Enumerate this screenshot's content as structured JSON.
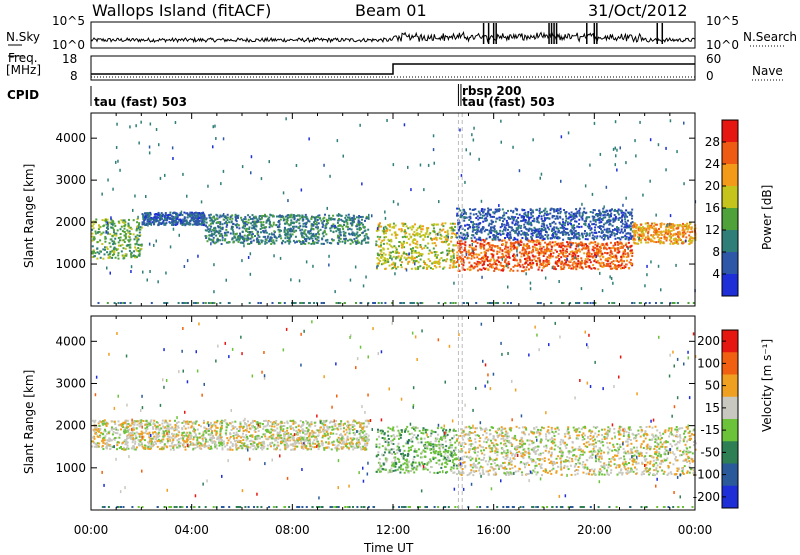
{
  "header": {
    "station": "Wallops Island (fitACF)",
    "beam": "Beam 01",
    "date": "31/Oct/2012"
  },
  "summary_panels": {
    "nsky_label": "N.Sky",
    "nsearch_label": "N.Search",
    "nsky_ticks": [
      "10^5",
      "10^0"
    ],
    "nsearch_ticks": [
      "10^5",
      "10^0"
    ],
    "freq_label_1": "Freq.",
    "freq_label_2": "[MHz]",
    "freq_ticks": [
      "18",
      "8"
    ],
    "nave_label": "Nave",
    "nave_ticks": [
      "60",
      "0"
    ],
    "cpid_label": "CPID",
    "cpid_entries": [
      {
        "text": "tau (fast) 503",
        "hour": 0.0
      },
      {
        "text": "rbsp 200",
        "hour": 14.6
      },
      {
        "text": "tau (fast) 503",
        "hour": 14.75
      }
    ]
  },
  "chart_data": [
    {
      "type": "heatmap",
      "name": "power",
      "ylabel": "Slant Range [km]",
      "xlabel": "Time UT",
      "x_range_hours": [
        0,
        24
      ],
      "ylim": [
        0,
        4600
      ],
      "yticks": [
        1000,
        2000,
        3000,
        4000
      ],
      "xtick_labels": [
        "00:00",
        "04:00",
        "08:00",
        "12:00",
        "16:00",
        "20:00",
        "00:00"
      ],
      "colorbar_label": "Power [dB]",
      "colorbar_ticks": [
        "4",
        "8",
        "12",
        "16",
        "20",
        "24",
        "28"
      ],
      "colorbar_colors": [
        "#1f2fd8",
        "#2e57a8",
        "#2f7f78",
        "#4fa13a",
        "#c4c41c",
        "#f49a19",
        "#ef5b12",
        "#e61610"
      ],
      "echo_regions": [
        {
          "t0": 0.0,
          "t1": 2.0,
          "r0": 1150,
          "r1": 2100,
          "level": 3
        },
        {
          "t0": 2.0,
          "t1": 4.5,
          "r0": 1950,
          "r1": 2250,
          "level": 1
        },
        {
          "t0": 4.5,
          "t1": 11.0,
          "r0": 1500,
          "r1": 2200,
          "level": 2
        },
        {
          "t0": 11.3,
          "t1": 14.5,
          "r0": 900,
          "r1": 2000,
          "level": 4
        },
        {
          "t0": 14.5,
          "t1": 18.0,
          "r0": 850,
          "r1": 1600,
          "level": 6
        },
        {
          "t0": 18.0,
          "t1": 21.5,
          "r0": 900,
          "r1": 1550,
          "level": 6
        },
        {
          "t0": 14.5,
          "t1": 21.5,
          "r0": 1600,
          "r1": 2350,
          "level": 1
        },
        {
          "t0": 21.5,
          "t1": 24.0,
          "r0": 1500,
          "r1": 2000,
          "level": 5
        }
      ]
    },
    {
      "type": "heatmap",
      "name": "velocity",
      "ylabel": "Slant Range [km]",
      "xlabel": "Time UT",
      "x_range_hours": [
        0,
        24
      ],
      "ylim": [
        0,
        4600
      ],
      "yticks": [
        1000,
        2000,
        3000,
        4000
      ],
      "xtick_labels": [
        "00:00",
        "04:00",
        "08:00",
        "12:00",
        "16:00",
        "20:00",
        "00:00"
      ],
      "colorbar_label": "Velocity [m s⁻¹]",
      "colorbar_ticks": [
        "200",
        "100",
        "50",
        "15",
        "-15",
        "-50",
        "-100",
        "-200"
      ],
      "colorbar_colors": [
        "#1f2fd8",
        "#2a5a9a",
        "#2f7f55",
        "#6cc33a",
        "#c8c8c0",
        "#f0a020",
        "#f06010",
        "#e61610"
      ],
      "echo_regions": [
        {
          "t0": 0.0,
          "t1": 11.0,
          "r0": 1450,
          "r1": 2150,
          "level": 4
        },
        {
          "t0": 11.3,
          "t1": 14.5,
          "r0": 900,
          "r1": 2000,
          "level": 3
        },
        {
          "t0": 14.5,
          "t1": 24.0,
          "r0": 850,
          "r1": 2000,
          "level": 4
        }
      ]
    }
  ]
}
